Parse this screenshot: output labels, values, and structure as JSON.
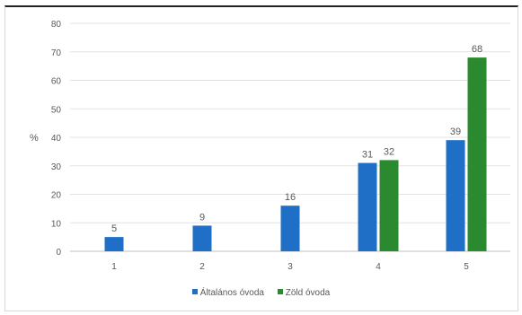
{
  "chart_data": {
    "type": "bar",
    "title": "",
    "xlabel": "",
    "ylabel": "%",
    "ylim": [
      0,
      80
    ],
    "ytick_step": 10,
    "grid": true,
    "legend_position": "bottom",
    "categories": [
      "1",
      "2",
      "3",
      "4",
      "5"
    ],
    "series": [
      {
        "name": "Általános óvoda",
        "color": "#1f6fc6",
        "values": [
          5,
          9,
          16,
          31,
          39
        ]
      },
      {
        "name": "Zöld óvoda",
        "color": "#2b8a2f",
        "values": [
          null,
          null,
          null,
          32,
          68
        ]
      }
    ]
  }
}
